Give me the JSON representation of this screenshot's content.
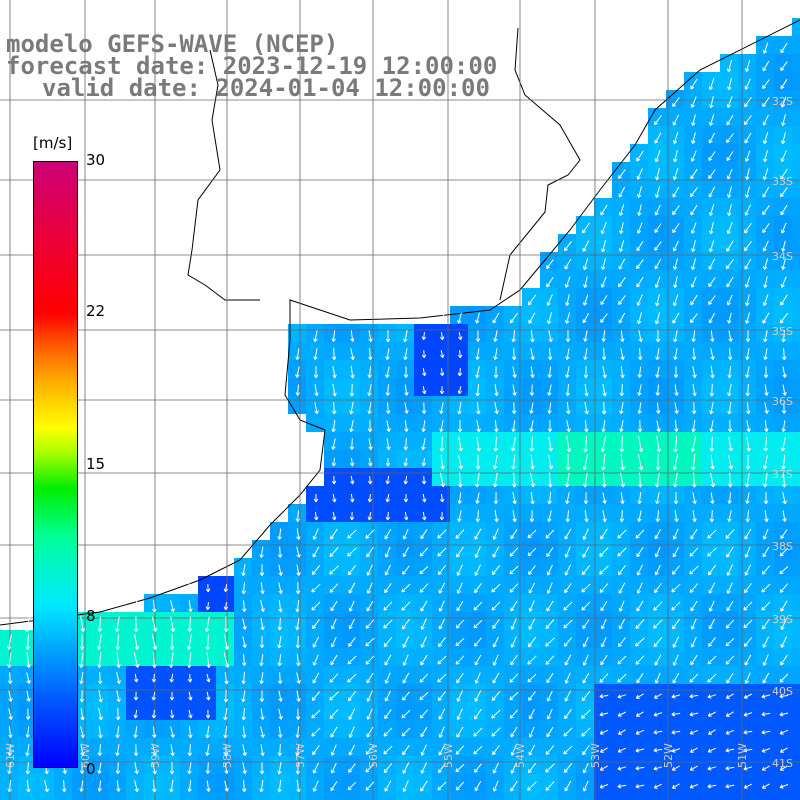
{
  "title": {
    "line1": "modelo GEFS-WAVE (NCEP)",
    "line2": "forecast date: 2023-12-19 12:00:00",
    "line3": "valid date: 2024-01-04 12:00:00"
  },
  "colorbar": {
    "units": "[m/s]",
    "ticks": [
      "30",
      "22",
      "15",
      "8",
      "0"
    ],
    "range": [
      0,
      30
    ],
    "colors": [
      "#0000ff",
      "#00aaff",
      "#00e8ff",
      "#00ee00",
      "#ffff00",
      "#ff0000",
      "#cc0077"
    ]
  },
  "map": {
    "lat_labels": [
      "32S",
      "33S",
      "34S",
      "35S",
      "36S",
      "37S",
      "38S",
      "39S",
      "40S",
      "41S"
    ],
    "lon_labels": [
      "61W",
      "60W",
      "59W",
      "58W",
      "57W",
      "56W",
      "55W",
      "54W",
      "53W",
      "52W",
      "51W"
    ],
    "gridlines": true,
    "land_color": "#ffffff",
    "vector_color": "#ffffff",
    "field": "wind speed with direction arrows"
  }
}
